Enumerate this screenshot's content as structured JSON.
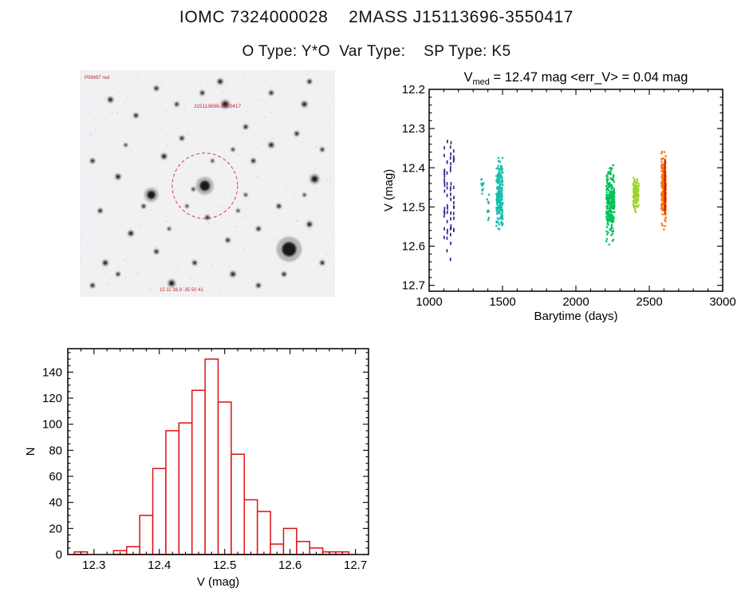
{
  "header": {
    "title_line": "IOMC 7324000028    2MASS J15113696-3550417",
    "subtitle_line": "O Type: Y*O  Var Type:    SP Type: K5"
  },
  "finder_chart": {
    "top_left_label": "P08497 red",
    "target_label": "J15113696-3550417",
    "bottom_label": "15 11 36.9  -35 50 41",
    "annotation_color": "#cc2222",
    "background": "#f1f1f4",
    "circle": {
      "cx_pct": 49,
      "cy_pct": 51,
      "r": 41
    },
    "stars": [
      [
        49,
        51,
        6.2
      ],
      [
        44.5,
        52.5,
        1.6
      ],
      [
        82,
        79,
        8.8
      ],
      [
        28,
        55,
        5.0
      ],
      [
        57,
        15,
        3.4
      ],
      [
        92,
        48,
        3.7
      ],
      [
        36,
        94,
        3.0
      ],
      [
        12,
        13,
        2.4
      ],
      [
        22,
        20,
        2.0
      ],
      [
        55,
        5,
        2.4
      ],
      [
        75,
        10,
        2.0
      ],
      [
        88,
        15,
        2.5
      ],
      [
        65,
        25,
        2.0
      ],
      [
        5,
        40,
        2.0
      ],
      [
        15,
        47,
        2.4
      ],
      [
        8,
        62,
        2.0
      ],
      [
        20,
        72,
        2.4
      ],
      [
        30,
        80,
        2.0
      ],
      [
        45,
        85,
        2.0
      ],
      [
        60,
        90,
        2.4
      ],
      [
        70,
        70,
        2.0
      ],
      [
        78,
        60,
        2.0
      ],
      [
        90,
        68,
        2.4
      ],
      [
        95,
        85,
        2.0
      ],
      [
        40,
        30,
        2.0
      ],
      [
        33,
        38,
        2.4
      ],
      [
        68,
        40,
        2.0
      ],
      [
        75,
        33,
        2.4
      ],
      [
        85,
        28,
        2.0
      ],
      [
        50,
        65,
        2.0
      ],
      [
        58,
        75,
        2.0
      ],
      [
        25,
        60,
        1.8
      ],
      [
        10,
        85,
        2.4
      ],
      [
        5,
        95,
        2.0
      ],
      [
        48,
        10,
        2.0
      ],
      [
        38,
        15,
        1.8
      ],
      [
        30,
        8,
        2.0
      ],
      [
        95,
        35,
        1.8
      ],
      [
        90,
        5,
        2.0
      ],
      [
        65,
        55,
        1.5
      ],
      [
        42,
        60,
        1.5
      ],
      [
        18,
        33,
        1.5
      ],
      [
        52,
        40,
        1.5
      ],
      [
        62,
        62,
        1.5
      ],
      [
        80,
        90,
        2.0
      ],
      [
        70,
        95,
        2.0
      ],
      [
        35,
        70,
        1.5
      ],
      [
        88,
        55,
        1.5
      ],
      [
        15,
        90,
        1.8
      ],
      [
        60,
        35,
        1.6
      ]
    ]
  },
  "chart_data": [
    {
      "type": "scatter",
      "title": "Vmed = 12.47 mag  <err_V> = 0.04 mag",
      "title_parts": {
        "v": "V",
        "sub": "med",
        "rest": " = 12.47 mag  <err_V> = 0.04 mag"
      },
      "v_med_mag": 12.47,
      "err_v_mag": 0.04,
      "xlabel": "Barytime (days)",
      "ylabel": "V (mag)",
      "xlim": [
        1000,
        3000
      ],
      "ylim_top": 12.2,
      "ylim_bottom": 12.715,
      "y_axis_inverted": true,
      "xticks": [
        1000,
        1500,
        2000,
        2500,
        3000
      ],
      "xtick_labels": [
        "1000",
        "1500",
        "2000",
        "2500",
        "3000"
      ],
      "yticks": [
        12.2,
        12.3,
        12.4,
        12.5,
        12.6,
        12.7
      ],
      "ytick_labels": [
        "12.2",
        "12.3",
        "12.4",
        "12.5",
        "12.6",
        "12.7"
      ],
      "x_minor_step": 100,
      "y_minor_step": 0.02,
      "clusters": [
        {
          "name": "epoch-1",
          "color": "#38218f",
          "x_columns": [
            1104,
            1123,
            1147,
            1168
          ],
          "x_jitter": 2,
          "y_mean": 12.48,
          "y_sigma": 0.085,
          "y_min": 12.3,
          "y_max": 12.66,
          "count": 64,
          "dash": true
        },
        {
          "name": "epoch-2a",
          "color": "#17b3a3",
          "x_min": 1356,
          "x_max": 1372,
          "y_mean": 12.45,
          "y_sigma": 0.015,
          "y_min": 12.42,
          "y_max": 12.49,
          "count": 12
        },
        {
          "name": "epoch-2b",
          "color": "#17b3a3",
          "x_min": 1393,
          "x_max": 1407,
          "y_mean": 12.49,
          "y_sigma": 0.02,
          "y_min": 12.45,
          "y_max": 12.54,
          "count": 10
        },
        {
          "name": "epoch-3",
          "color": "#14bfae",
          "x_min": 1458,
          "x_max": 1502,
          "y_mean": 12.465,
          "y_sigma": 0.04,
          "y_min": 12.37,
          "y_max": 12.62,
          "count": 230
        },
        {
          "name": "epoch-4",
          "color": "#00c257",
          "x_min": 2207,
          "x_max": 2263,
          "y_mean": 12.49,
          "y_sigma": 0.045,
          "y_min": 12.39,
          "y_max": 12.64,
          "count": 260
        },
        {
          "name": "epoch-5",
          "color": "#9ed32a",
          "x_min": 2390,
          "x_max": 2428,
          "y_mean": 12.465,
          "y_sigma": 0.02,
          "y_min": 12.425,
          "y_max": 12.52,
          "count": 130
        },
        {
          "name": "epoch-6",
          "color": "#f97306",
          "x_min": 2582,
          "x_max": 2614,
          "y_mean": 12.455,
          "y_sigma": 0.038,
          "y_min": 12.355,
          "y_max": 12.57,
          "count": 230
        },
        {
          "name": "epoch-6b",
          "color": "#cf1d0e",
          "x_columns": [
            2607
          ],
          "x_jitter": 2,
          "y_mean": 12.45,
          "y_sigma": 0.035,
          "y_min": 12.38,
          "y_max": 12.55,
          "count": 70,
          "dash": true
        }
      ]
    },
    {
      "type": "bar",
      "title": "",
      "xlabel": "V (mag)",
      "ylabel": "N",
      "bar_color": "#dd1111",
      "xlim": [
        12.26,
        12.72
      ],
      "ylim": [
        0,
        158
      ],
      "xticks": [
        12.3,
        12.4,
        12.5,
        12.6,
        12.7
      ],
      "xtick_labels": [
        "12.3",
        "12.4",
        "12.5",
        "12.6",
        "12.7"
      ],
      "yticks": [
        0,
        20,
        40,
        60,
        80,
        100,
        120,
        140
      ],
      "ytick_labels": [
        "0",
        "20",
        "40",
        "60",
        "80",
        "100",
        "120",
        "140"
      ],
      "x_minor_step": 0.02,
      "y_minor_step": 5,
      "bin_start": 12.27,
      "bin_width": 0.02,
      "counts": [
        2,
        0,
        0,
        3,
        6,
        30,
        66,
        95,
        101,
        126,
        150,
        117,
        77,
        42,
        33,
        8,
        20,
        10,
        5,
        2,
        2
      ]
    }
  ]
}
